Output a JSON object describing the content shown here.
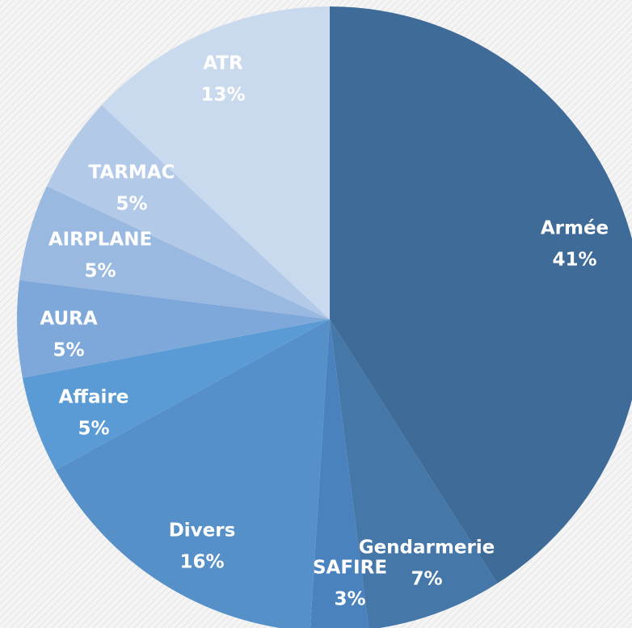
{
  "chart_data": {
    "type": "pie",
    "categories": [
      "Armée",
      "Gendarmerie",
      "SAFIRE",
      "Divers",
      "Affaire",
      "AURA",
      "AIRPLANE",
      "TARMAC",
      "ATR"
    ],
    "values": [
      41,
      7,
      3,
      16,
      5,
      5,
      5,
      5,
      13
    ],
    "value_labels": [
      "41%",
      "7%",
      "3%",
      "16%",
      "5%",
      "5%",
      "5%",
      "5%",
      "13%"
    ],
    "colors": [
      "#3e6b97",
      "#4677a9",
      "#4a82bd",
      "#5590c8",
      "#5b9bd5",
      "#7ea8da",
      "#9ab9e1",
      "#b2c9e8",
      "#c9d9ee"
    ]
  }
}
